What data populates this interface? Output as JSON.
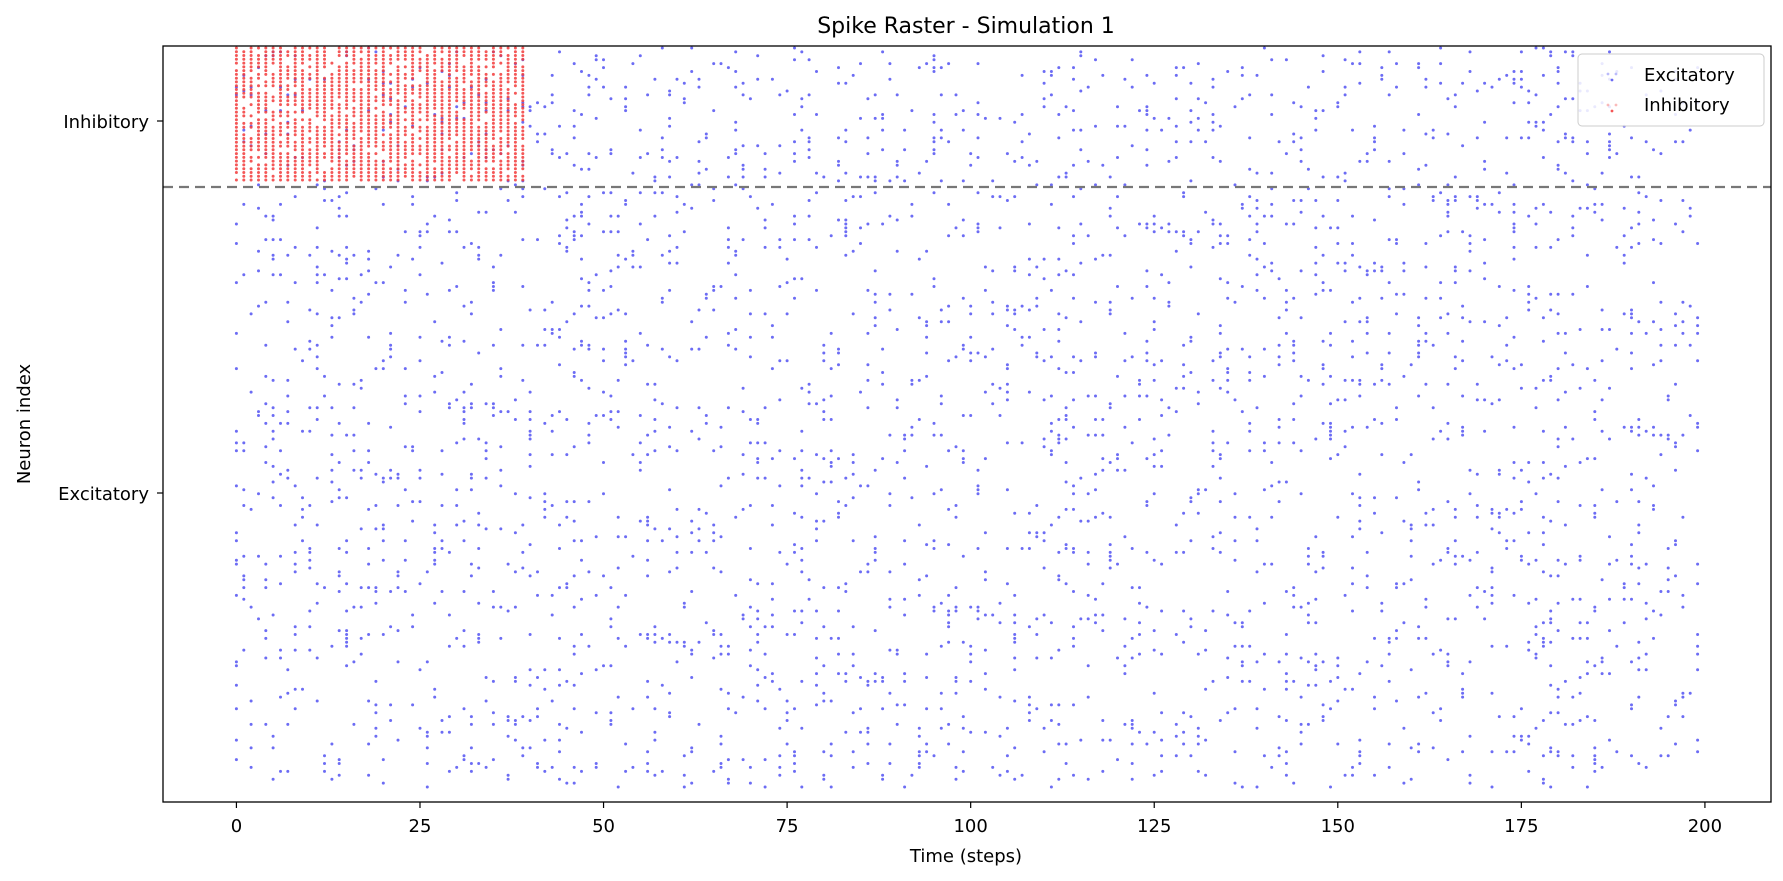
{
  "chart_data": {
    "type": "scatter",
    "title": "Spike Raster - Simulation 1",
    "xlabel": "Time (steps)",
    "ylabel": "Neuron index",
    "xlim": [
      -10,
      209
    ],
    "x_ticks": [
      0,
      25,
      50,
      75,
      100,
      125,
      150,
      175,
      200
    ],
    "y_tick_labels": [
      "Inhibitory",
      "Excitatory"
    ],
    "grid": false,
    "legend_position": "top-right",
    "divider_style": "dashed",
    "series": [
      {
        "name": "Excitatory",
        "color": "#3b3bf0",
        "time_range": [
          0,
          199
        ],
        "firing_rate_approx": 0.08
      },
      {
        "name": "Inhibitory",
        "color": "#f23a3a",
        "time_range": [
          0,
          39
        ],
        "firing_rate_approx": 0.85
      }
    ]
  }
}
